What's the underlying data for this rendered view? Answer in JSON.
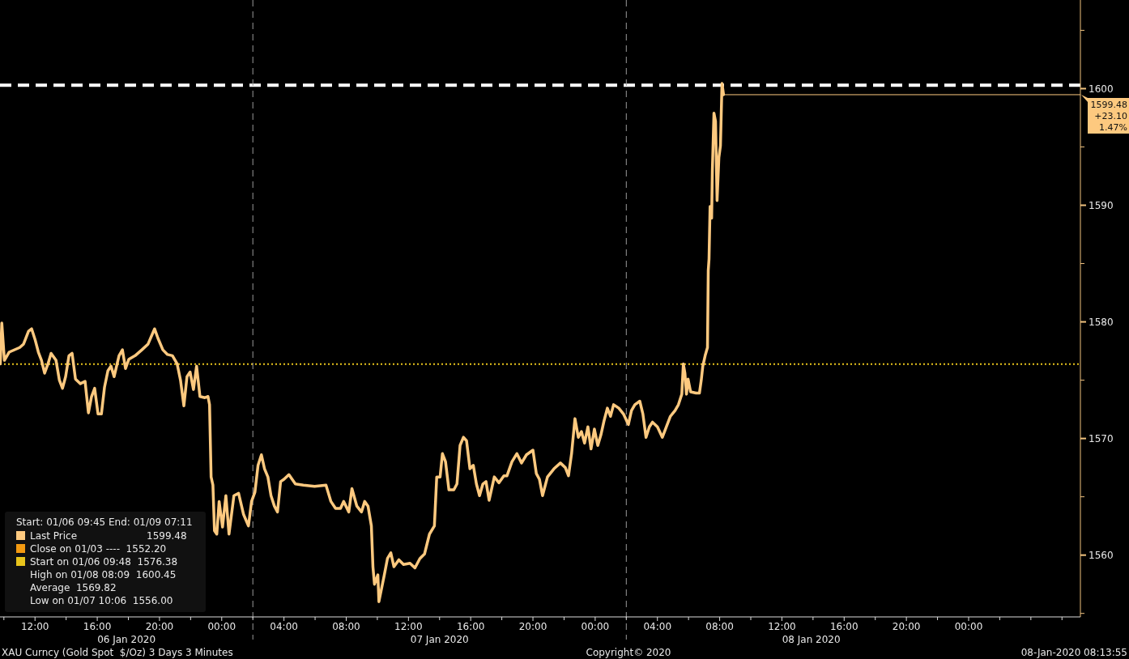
{
  "chart_data": {
    "type": "line",
    "legend_title": "Start: 01/06 09:45 End: 01/09 07:11",
    "legend": "bottom left",
    "grid": false,
    "marker": "none",
    "line_style": "solid",
    "xlim": [
      "2020-01-06T09:45",
      "2020-01-09T07:11"
    ],
    "xticks": [
      {
        "value": "2020-01-06T10:00",
        "label": null
      },
      {
        "value": "2020-01-06T12:00",
        "label": "12:00"
      },
      {
        "value": "2020-01-06T14:00",
        "label": null
      },
      {
        "value": "2020-01-06T16:00",
        "label": "16:00"
      },
      {
        "value": "2020-01-06T18:00",
        "label": null
      },
      {
        "value": "2020-01-06T20:00",
        "label": "20:00"
      },
      {
        "value": "2020-01-06T22:00",
        "label": null
      },
      {
        "value": "2020-01-07T00:00",
        "label": "00:00"
      },
      {
        "value": "2020-01-07T02:00",
        "label": null
      },
      {
        "value": "2020-01-07T04:00",
        "label": "04:00"
      },
      {
        "value": "2020-01-07T06:00",
        "label": null
      },
      {
        "value": "2020-01-07T08:00",
        "label": "08:00"
      },
      {
        "value": "2020-01-07T10:00",
        "label": null
      },
      {
        "value": "2020-01-07T12:00",
        "label": "12:00"
      },
      {
        "value": "2020-01-07T14:00",
        "label": null
      },
      {
        "value": "2020-01-07T16:00",
        "label": "16:00"
      },
      {
        "value": "2020-01-07T18:00",
        "label": null
      },
      {
        "value": "2020-01-07T20:00",
        "label": "20:00"
      },
      {
        "value": "2020-01-07T22:00",
        "label": null
      },
      {
        "value": "2020-01-08T00:00",
        "label": "00:00"
      },
      {
        "value": "2020-01-08T02:00",
        "label": null
      },
      {
        "value": "2020-01-08T04:00",
        "label": "04:00"
      },
      {
        "value": "2020-01-08T06:00",
        "label": null
      },
      {
        "value": "2020-01-08T08:00",
        "label": "08:00"
      },
      {
        "value": "2020-01-08T10:00",
        "label": null
      },
      {
        "value": "2020-01-08T12:00",
        "label": "12:00"
      },
      {
        "value": "2020-01-08T14:00",
        "label": null
      },
      {
        "value": "2020-01-08T16:00",
        "label": "16:00"
      },
      {
        "value": "2020-01-08T18:00",
        "label": null
      },
      {
        "value": "2020-01-08T20:00",
        "label": "20:00"
      },
      {
        "value": "2020-01-08T22:00",
        "label": null
      },
      {
        "value": "2020-01-09T00:00",
        "label": "00:00"
      },
      {
        "value": "2020-01-09T02:00",
        "label": null
      },
      {
        "value": "2020-01-09T04:00",
        "label": null
      },
      {
        "value": "2020-01-09T06:00",
        "label": null
      }
    ],
    "ylim": [
      1554.7,
      1607.6
    ],
    "yticks": [
      1560,
      1570,
      1580,
      1590,
      1600
    ],
    "series": [
      {
        "name": "Last Price",
        "color": "#fdc97f",
        "x": [
          "2020-01-06T09:46",
          "2020-01-06T09:52",
          "2020-01-06T10:02",
          "2020-01-06T10:20",
          "2020-01-06T11:01",
          "2020-01-06T11:16",
          "2020-01-06T11:35",
          "2020-01-06T11:47",
          "2020-01-06T12:00",
          "2020-01-06T12:13",
          "2020-01-06T12:25",
          "2020-01-06T12:37",
          "2020-01-06T12:50",
          "2020-01-06T13:02",
          "2020-01-06T13:21",
          "2020-01-06T13:34",
          "2020-01-06T13:46",
          "2020-01-06T13:58",
          "2020-01-06T14:11",
          "2020-01-06T14:23",
          "2020-01-06T14:36",
          "2020-01-06T14:55",
          "2020-01-06T15:13",
          "2020-01-06T15:26",
          "2020-01-06T15:38",
          "2020-01-06T15:50",
          "2020-01-06T16:03",
          "2020-01-06T16:16",
          "2020-01-06T16:28",
          "2020-01-06T16:41",
          "2020-01-06T16:53",
          "2020-01-06T17:05",
          "2020-01-06T17:24",
          "2020-01-06T17:37",
          "2020-01-06T17:49",
          "2020-01-06T18:02",
          "2020-01-06T18:26",
          "2020-01-06T18:52",
          "2020-01-06T19:16",
          "2020-01-06T19:41",
          "2020-01-06T19:54",
          "2020-01-06T20:13",
          "2020-01-06T20:31",
          "2020-01-06T20:50",
          "2020-01-06T21:08",
          "2020-01-06T21:21",
          "2020-01-06T21:34",
          "2020-01-06T21:46",
          "2020-01-06T21:58",
          "2020-01-06T22:11",
          "2020-01-06T22:23",
          "2020-01-06T22:36",
          "2020-01-06T22:55",
          "2020-01-06T23:07",
          "2020-01-06T23:13",
          "2020-01-06T23:19",
          "2020-01-06T23:26",
          "2020-01-06T23:32",
          "2020-01-06T23:41",
          "2020-01-06T23:50",
          "2020-01-07T00:03",
          "2020-01-07T00:16",
          "2020-01-07T00:28",
          "2020-01-07T00:47",
          "2020-01-07T01:05",
          "2020-01-07T01:24",
          "2020-01-07T01:43",
          "2020-01-07T01:55",
          "2020-01-07T02:08",
          "2020-01-07T02:20",
          "2020-01-07T02:33",
          "2020-01-07T02:45",
          "2020-01-07T02:58",
          "2020-01-07T03:10",
          "2020-01-07T03:23",
          "2020-01-07T03:35",
          "2020-01-07T03:47",
          "2020-01-07T04:00",
          "2020-01-07T04:19",
          "2020-01-07T04:44",
          "2020-01-07T05:15",
          "2020-01-07T05:58",
          "2020-01-07T06:42",
          "2020-01-07T07:01",
          "2020-01-07T07:19",
          "2020-01-07T07:38",
          "2020-01-07T07:50",
          "2020-01-07T08:10",
          "2020-01-07T08:22",
          "2020-01-07T08:41",
          "2020-01-07T08:59",
          "2020-01-07T09:11",
          "2020-01-07T09:24",
          "2020-01-07T09:37",
          "2020-01-07T09:43",
          "2020-01-07T09:49",
          "2020-01-07T10:02",
          "2020-01-07T10:06",
          "2020-01-07T10:26",
          "2020-01-07T10:39",
          "2020-01-07T10:52",
          "2020-01-07T11:04",
          "2020-01-07T11:23",
          "2020-01-07T11:41",
          "2020-01-07T12:06",
          "2020-01-07T12:25",
          "2020-01-07T12:44",
          "2020-01-07T13:02",
          "2020-01-07T13:21",
          "2020-01-07T13:40",
          "2020-01-07T13:49",
          "2020-01-07T14:02",
          "2020-01-07T14:11",
          "2020-01-07T14:23",
          "2020-01-07T14:36",
          "2020-01-07T14:55",
          "2020-01-07T15:07",
          "2020-01-07T15:19",
          "2020-01-07T15:32",
          "2020-01-07T15:44",
          "2020-01-07T15:57",
          "2020-01-07T16:10",
          "2020-01-07T16:22",
          "2020-01-07T16:34",
          "2020-01-07T16:47",
          "2020-01-07T16:59",
          "2020-01-07T17:11",
          "2020-01-07T17:31",
          "2020-01-07T17:49",
          "2020-01-07T18:08",
          "2020-01-07T18:20",
          "2020-01-07T18:39",
          "2020-01-07T18:58",
          "2020-01-07T19:16",
          "2020-01-07T19:35",
          "2020-01-07T20:00",
          "2020-01-07T20:13",
          "2020-01-07T20:25",
          "2020-01-07T20:37",
          "2020-01-07T20:56",
          "2020-01-07T21:21",
          "2020-01-07T21:46",
          "2020-01-07T22:05",
          "2020-01-07T22:17",
          "2020-01-07T22:29",
          "2020-01-07T22:42",
          "2020-01-07T22:55",
          "2020-01-07T23:07",
          "2020-01-07T23:19",
          "2020-01-07T23:32",
          "2020-01-07T23:44",
          "2020-01-07T23:57",
          "2020-01-08T00:10",
          "2020-01-08T00:22",
          "2020-01-08T00:34",
          "2020-01-08T00:47",
          "2020-01-08T00:59",
          "2020-01-08T01:11",
          "2020-01-08T01:31",
          "2020-01-08T01:49",
          "2020-01-08T02:08",
          "2020-01-08T02:20",
          "2020-01-08T02:33",
          "2020-01-08T02:52",
          "2020-01-08T03:04",
          "2020-01-08T03:16",
          "2020-01-08T03:29",
          "2020-01-08T03:41",
          "2020-01-08T04:00",
          "2020-01-08T04:19",
          "2020-01-08T04:31",
          "2020-01-08T04:50",
          "2020-01-08T05:08",
          "2020-01-08T05:21",
          "2020-01-08T05:34",
          "2020-01-08T05:40",
          "2020-01-08T05:46",
          "2020-01-08T05:52",
          "2020-01-08T05:58",
          "2020-01-08T06:08",
          "2020-01-08T06:29",
          "2020-01-08T06:42",
          "2020-01-08T06:49",
          "2020-01-08T06:55",
          "2020-01-08T07:04",
          "2020-01-08T07:13",
          "2020-01-08T07:16",
          "2020-01-08T07:19",
          "2020-01-08T07:23",
          "2020-01-08T07:29",
          "2020-01-08T07:32",
          "2020-01-08T07:38",
          "2020-01-08T07:44",
          "2020-01-08T07:50",
          "2020-01-08T07:57",
          "2020-01-08T08:03",
          "2020-01-08T08:09",
          "2020-01-08T08:15"
        ],
        "values": [
          1576.4,
          1579.9,
          1576.7,
          1577.4,
          1577.8,
          1578.1,
          1579.2,
          1579.4,
          1578.5,
          1577.4,
          1576.7,
          1575.6,
          1576.4,
          1577.3,
          1576.7,
          1575.0,
          1574.3,
          1575.3,
          1577.1,
          1577.3,
          1575.1,
          1574.7,
          1574.9,
          1572.2,
          1573.6,
          1574.3,
          1572.1,
          1572.1,
          1574.4,
          1575.8,
          1576.2,
          1575.3,
          1577.1,
          1577.6,
          1576.0,
          1576.8,
          1577.1,
          1577.6,
          1578.1,
          1579.4,
          1578.6,
          1577.6,
          1577.2,
          1577.1,
          1576.4,
          1575.0,
          1572.8,
          1575.3,
          1575.7,
          1574.2,
          1576.2,
          1573.6,
          1573.5,
          1573.6,
          1572.9,
          1566.7,
          1566.0,
          1562.1,
          1561.8,
          1564.6,
          1562.4,
          1565.1,
          1561.8,
          1565.1,
          1565.3,
          1563.5,
          1562.5,
          1564.6,
          1565.4,
          1567.7,
          1568.6,
          1567.4,
          1566.7,
          1565.1,
          1564.2,
          1563.7,
          1566.3,
          1566.5,
          1566.9,
          1566.1,
          1566.0,
          1565.9,
          1566.0,
          1564.6,
          1564.0,
          1564.0,
          1564.6,
          1563.7,
          1565.7,
          1564.2,
          1563.7,
          1564.6,
          1564.2,
          1562.5,
          1559.0,
          1557.5,
          1558.3,
          1556.0,
          1558.2,
          1559.7,
          1560.2,
          1559.0,
          1559.6,
          1559.2,
          1559.3,
          1558.9,
          1559.7,
          1560.1,
          1561.8,
          1562.5,
          1566.7,
          1566.7,
          1568.7,
          1568.0,
          1565.6,
          1565.6,
          1566.1,
          1569.4,
          1570.1,
          1569.8,
          1567.4,
          1567.7,
          1566.1,
          1565.1,
          1566.1,
          1566.3,
          1564.7,
          1566.7,
          1566.2,
          1566.8,
          1566.8,
          1568.0,
          1568.7,
          1567.9,
          1568.6,
          1569.0,
          1567.0,
          1566.5,
          1565.1,
          1566.7,
          1567.4,
          1567.9,
          1567.5,
          1566.8,
          1568.7,
          1571.7,
          1570.1,
          1570.6,
          1569.6,
          1571.0,
          1569.1,
          1570.8,
          1569.4,
          1570.3,
          1571.5,
          1572.6,
          1571.9,
          1572.9,
          1572.6,
          1572.1,
          1571.2,
          1572.4,
          1572.9,
          1573.2,
          1572.1,
          1570.1,
          1571.0,
          1571.4,
          1571.0,
          1570.1,
          1570.8,
          1571.9,
          1572.4,
          1572.9,
          1573.8,
          1576.4,
          1575.6,
          1573.8,
          1575.1,
          1574.0,
          1573.9,
          1573.9,
          1575.0,
          1576.2,
          1577.1,
          1577.8,
          1584.4,
          1585.4,
          1589.9,
          1588.9,
          1593.1,
          1597.9,
          1597.2,
          1590.4,
          1594.1,
          1595.1,
          1600.45,
          1599.48
        ]
      }
    ],
    "ref_lines": [
      {
        "axis": "y",
        "value": 1600.3,
        "color": "#ffffff",
        "line_style": "dashed"
      },
      {
        "axis": "y",
        "value": 1576.38,
        "color": "#e8c41c",
        "line_style": "dotted"
      },
      {
        "axis": "x",
        "value": "2020-01-07T02:00",
        "color": "#9a9a9a",
        "line_style": "dashed"
      },
      {
        "axis": "x",
        "value": "2020-01-08T02:00",
        "color": "#9a9a9a",
        "line_style": "dashed"
      }
    ],
    "annotations": [
      "06 Jan 2020",
      "07 Jan 2020",
      "08 Jan 2020",
      {
        "text": "1599.48\n+23.10\n1.47%",
        "x": "2020-01-08T08:15",
        "y": 1599.48
      },
      "1599.48",
      "Close on 01/03 ----  1552.20",
      "Start on 01/06 09:48  1576.38",
      "High on 01/08 08:09  1600.45",
      "Average  1569.82",
      "Low on 01/07 10:06  1556.00",
      "XAU Curncy (Gold Spot  $/Oz) 3 Days 3 Minutes",
      "Copyright© 2020",
      "08-Jan-2020 08:13:55"
    ]
  }
}
